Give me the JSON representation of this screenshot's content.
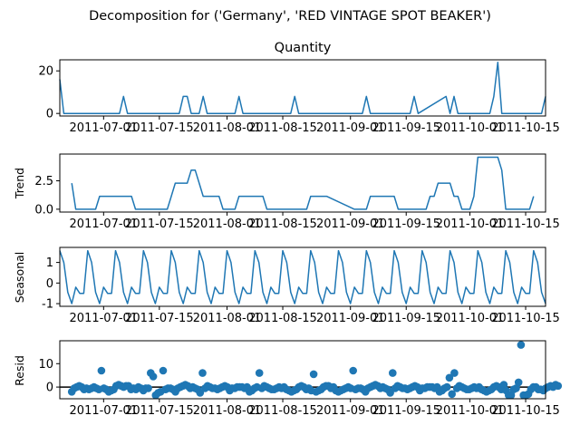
{
  "suptitle": "Decomposition for ('Germany', 'RED VINTAGE SPOT BEAKER')",
  "colors": {
    "series": "#1f77b4",
    "zero_line": "#000000"
  },
  "chart_data": [
    {
      "type": "line",
      "name": "observed",
      "title": "Quantity",
      "ylabel": "",
      "xlabel": "",
      "x_ticks": [
        "2011-07-01",
        "2011-07-15",
        "2011-08-01",
        "2011-08-15",
        "2011-09-01",
        "2011-09-15",
        "2011-10-01",
        "2011-10-15"
      ],
      "y_ticks": [
        0,
        20
      ],
      "ylim": [
        -1.2,
        25.2
      ],
      "x": [
        "2011-06-20",
        "2011-06-21",
        "2011-07-05",
        "2011-07-06",
        "2011-07-07",
        "2011-07-20",
        "2011-07-21",
        "2011-07-22",
        "2011-07-23",
        "2011-07-25",
        "2011-07-26",
        "2011-07-27",
        "2011-08-03",
        "2011-08-04",
        "2011-08-05",
        "2011-08-17",
        "2011-08-18",
        "2011-08-19",
        "2011-09-04",
        "2011-09-05",
        "2011-09-06",
        "2011-09-16",
        "2011-09-17",
        "2011-09-18",
        "2011-09-25",
        "2011-09-26",
        "2011-09-27",
        "2011-09-28",
        "2011-09-29",
        "2011-10-06",
        "2011-10-07",
        "2011-10-08",
        "2011-10-09",
        "2011-10-19",
        "2011-10-20"
      ],
      "y": [
        16,
        0,
        0,
        8,
        0,
        0,
        8,
        8,
        0,
        0,
        8,
        0,
        0,
        8,
        0,
        0,
        8,
        0,
        0,
        8,
        0,
        0,
        8,
        0,
        8,
        0,
        8,
        0,
        0,
        0,
        8,
        24,
        0,
        0,
        8
      ]
    },
    {
      "type": "line",
      "name": "trend",
      "title": "",
      "ylabel": "Trend",
      "xlabel": "",
      "x_ticks": [
        "2011-07-01",
        "2011-07-15",
        "2011-08-01",
        "2011-08-15",
        "2011-09-01",
        "2011-09-15",
        "2011-10-01",
        "2011-10-15"
      ],
      "y_ticks": [
        0.0,
        2.5
      ],
      "y_tick_labels": [
        "0.0",
        "2.5"
      ],
      "ylim": [
        -0.25,
        4.85
      ],
      "x": [
        "2011-06-23",
        "2011-06-24",
        "2011-06-28",
        "2011-06-29",
        "2011-06-30",
        "2011-07-07",
        "2011-07-08",
        "2011-07-09",
        "2011-07-16",
        "2011-07-17",
        "2011-07-18",
        "2011-07-19",
        "2011-07-21",
        "2011-07-22",
        "2011-07-23",
        "2011-07-24",
        "2011-07-25",
        "2011-07-26",
        "2011-07-30",
        "2011-07-31",
        "2011-08-01",
        "2011-08-02",
        "2011-08-03",
        "2011-08-04",
        "2011-08-05",
        "2011-08-06",
        "2011-08-07",
        "2011-08-08",
        "2011-08-09",
        "2011-08-10",
        "2011-08-11",
        "2011-08-18",
        "2011-08-19",
        "2011-08-20",
        "2011-08-21",
        "2011-08-22",
        "2011-08-23",
        "2011-08-24",
        "2011-08-26",
        "2011-09-02",
        "2011-09-03",
        "2011-09-04",
        "2011-09-05",
        "2011-09-06",
        "2011-09-07",
        "2011-09-08",
        "2011-09-09",
        "2011-09-10",
        "2011-09-11",
        "2011-09-12",
        "2011-09-13",
        "2011-09-20",
        "2011-09-21",
        "2011-09-22",
        "2011-09-23",
        "2011-09-24",
        "2011-09-25",
        "2011-09-26",
        "2011-09-27",
        "2011-09-28",
        "2011-09-29",
        "2011-09-30",
        "2011-10-01",
        "2011-10-02",
        "2011-10-03",
        "2011-10-04",
        "2011-10-05",
        "2011-10-06",
        "2011-10-07",
        "2011-10-08",
        "2011-10-09",
        "2011-10-10",
        "2011-10-11",
        "2011-10-12",
        "2011-10-13",
        "2011-10-14",
        "2011-10-15",
        "2011-10-16",
        "2011-10-17"
      ],
      "y": [
        2.29,
        0,
        0,
        0,
        1.14,
        1.14,
        1.14,
        0,
        0,
        0,
        1.14,
        2.29,
        2.29,
        2.29,
        3.43,
        3.43,
        2.29,
        1.14,
        1.14,
        0,
        0,
        0,
        0,
        1.14,
        1.14,
        1.14,
        1.14,
        1.14,
        1.14,
        1.14,
        0,
        0,
        0,
        0,
        0,
        1.14,
        1.14,
        1.14,
        1.14,
        0,
        0,
        0,
        0,
        1.14,
        1.14,
        1.14,
        1.14,
        1.14,
        1.14,
        1.14,
        0,
        0,
        1.14,
        1.14,
        2.29,
        2.29,
        2.29,
        2.29,
        1.14,
        1.14,
        0,
        0,
        0,
        1.14,
        4.57,
        4.57,
        4.57,
        4.57,
        4.57,
        4.57,
        3.43,
        0,
        0,
        0,
        0,
        0,
        0,
        0,
        1.14
      ]
    },
    {
      "type": "line",
      "name": "seasonal",
      "title": "",
      "ylabel": "Seasonal",
      "xlabel": "",
      "x_ticks": [
        "2011-07-01",
        "2011-07-15",
        "2011-08-01",
        "2011-08-15",
        "2011-09-01",
        "2011-09-15",
        "2011-10-01",
        "2011-10-15"
      ],
      "y_ticks": [
        -1,
        0,
        1
      ],
      "ylim": [
        -1.13,
        1.73
      ],
      "period": 7,
      "pattern": [
        1.57,
        1.0,
        -0.45,
        -1.0,
        -0.2,
        -0.5,
        -0.5
      ],
      "x_start": "2011-06-20",
      "x_end": "2011-10-20"
    },
    {
      "type": "scatter",
      "name": "resid",
      "title": "",
      "ylabel": "Resid",
      "xlabel": "",
      "x_ticks": [
        "2011-07-01",
        "2011-07-15",
        "2011-08-01",
        "2011-08-15",
        "2011-09-01",
        "2011-09-15",
        "2011-10-01",
        "2011-10-15"
      ],
      "y_ticks": [
        0,
        10
      ],
      "ylim": [
        -5.0,
        19.8
      ],
      "hline": 0,
      "x_start": "2011-06-23",
      "y": [
        -2,
        -0.5,
        0,
        0.5,
        0,
        -1,
        -0.5,
        -1,
        -0.5,
        0,
        -0.5,
        -1,
        7,
        -0.5,
        -1,
        -2,
        -1.5,
        -1,
        0.5,
        1,
        0.5,
        0,
        0.5,
        0.5,
        -1,
        -0.5,
        -1,
        0,
        -0.5,
        -1.5,
        -0.5,
        -0.5,
        6,
        4.5,
        -3.5,
        -2.5,
        -2,
        7,
        -1,
        -0.5,
        -0.5,
        -1,
        -2,
        -0.5,
        0,
        0.5,
        1,
        0.5,
        -0.5,
        0,
        -0.5,
        -1,
        -2.5,
        6,
        -0.5,
        0.5,
        0,
        -0.5,
        -0.5,
        -1,
        -0.5,
        0,
        0.5,
        0,
        -1.5,
        -0.5,
        -0.5,
        0,
        0,
        0,
        -0.5,
        0,
        -2,
        -1.5,
        -0.5,
        0,
        6,
        -0.5,
        0.5,
        0,
        -0.5,
        -1,
        -1,
        -0.5,
        0,
        -0.5,
        0,
        -1,
        -1.5,
        -2,
        -1.5,
        -1,
        0,
        0.5,
        0,
        -1,
        -0.5,
        -1.5,
        5.5,
        -2,
        -1.5,
        -1,
        0,
        0.5,
        0.5,
        -0.5,
        0,
        -1.5,
        -2,
        -1.5,
        -1,
        -0.5,
        0,
        -0.5,
        7,
        -1,
        -0.5,
        -0.5,
        -1,
        -2,
        -0.5,
        0,
        0.5,
        1,
        0.5,
        -0.5,
        0,
        -0.5,
        -1,
        -2.5,
        6,
        -0.5,
        0.5,
        0,
        -0.5,
        -0.5,
        -1,
        -0.5,
        0,
        0.5,
        0,
        -1.5,
        -0.5,
        -0.5,
        0,
        0,
        0,
        -0.5,
        0,
        -2,
        -1.5,
        -0.5,
        0,
        4,
        -3,
        6,
        -0.5,
        0.5,
        0,
        -0.5,
        -1,
        -1,
        -0.5,
        0,
        -0.5,
        0,
        -1,
        -1.5,
        -2,
        -1.5,
        -1,
        0,
        0.5,
        0,
        -1,
        1,
        -1.5,
        -3.5,
        -3.5,
        -1,
        -0.5,
        2,
        18,
        -3.5,
        -3.5,
        -3,
        -1,
        0,
        0,
        -1,
        -1,
        -1.5,
        -0.5,
        0,
        0.5,
        0,
        1,
        0.5
      ]
    }
  ]
}
